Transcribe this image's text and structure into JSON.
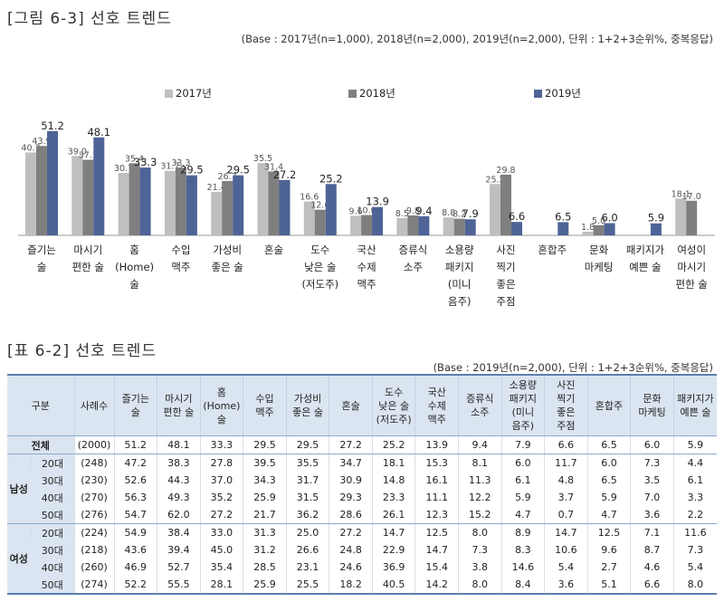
{
  "figure": {
    "title": "[그림 6-3] 선호 트렌드",
    "base_note": "(Base : 2017년(n=1,000), 2018년(n=2,000), 2019년(n=2,000), 단위 : 1+2+3순위%, 중복응답)"
  },
  "colors": {
    "y2017": "#bfbfbf",
    "y2018": "#7f7f7f",
    "y2019": "#4e6496"
  },
  "chart_data": {
    "type": "bar",
    "categories": [
      [
        "즐기는",
        "술"
      ],
      [
        "마시기",
        "편한 술"
      ],
      [
        "홈",
        "(Home)",
        "술"
      ],
      [
        "수입",
        "맥주"
      ],
      [
        "가성비",
        "좋은 술"
      ],
      [
        "혼술"
      ],
      [
        "도수",
        "낮은 술",
        "(저도주)"
      ],
      [
        "국산",
        "수제",
        "맥주"
      ],
      [
        "증류식",
        "소주"
      ],
      [
        "소용량",
        "패키지",
        "(미니",
        "음주)"
      ],
      [
        "사진",
        "찍기",
        "좋은",
        "주점"
      ],
      [
        "혼합주"
      ],
      [
        "문화",
        "마케팅"
      ],
      [
        "패키지가",
        "예쁜 술"
      ],
      [
        "여성이",
        "마시기",
        "편한 술"
      ]
    ],
    "series": [
      {
        "name": "2017년",
        "values": [
          40.7,
          39.0,
          30.7,
          31.7,
          21.4,
          35.5,
          16.6,
          9.6,
          8.5,
          8.8,
          25.2,
          null,
          1.8,
          null,
          18.1
        ]
      },
      {
        "name": "2018년",
        "values": [
          43.9,
          37.1,
          35.4,
          33.3,
          26.7,
          31.4,
          12.6,
          10.0,
          9.8,
          8.2,
          29.8,
          null,
          5.0,
          null,
          17.0
        ]
      },
      {
        "name": "2019년",
        "values": [
          51.2,
          48.1,
          33.3,
          29.5,
          29.5,
          27.2,
          25.2,
          13.9,
          9.4,
          7.9,
          6.6,
          6.5,
          6.0,
          5.9,
          null
        ]
      }
    ],
    "ylim": [
      0,
      60
    ],
    "legend": "top-center"
  },
  "table": {
    "title": "[표 6-2] 선호 트렌드",
    "base_note": "(Base : 2019년(n=2,000), 단위 : 1+2+3순위%, 중복응답)",
    "headers": [
      [
        "구분"
      ],
      [
        "사례수"
      ],
      [
        "즐기는",
        "술"
      ],
      [
        "마시기",
        "편한 술"
      ],
      [
        "홈",
        "(Home)",
        "술"
      ],
      [
        "수입",
        "맥주"
      ],
      [
        "가성비",
        "좋은 술"
      ],
      [
        "혼술"
      ],
      [
        "도수",
        "낮은 술",
        "(저도주)"
      ],
      [
        "국산",
        "수제",
        "맥주"
      ],
      [
        "증류식",
        "소주"
      ],
      [
        "소용량",
        "패키지",
        "(미니",
        "음주)"
      ],
      [
        "사진",
        "찍기",
        "좋은",
        "주점"
      ],
      [
        "혼합주"
      ],
      [
        "문화",
        "마케팅"
      ],
      [
        "패키지가",
        "예쁜 술"
      ]
    ],
    "total": {
      "label": "전체",
      "n": "(2000)",
      "values": [
        "51.2",
        "48.1",
        "33.3",
        "29.5",
        "29.5",
        "27.2",
        "25.2",
        "13.9",
        "9.4",
        "7.9",
        "6.6",
        "6.5",
        "6.0",
        "5.9"
      ]
    },
    "groups": [
      {
        "name": "남성",
        "rows": [
          {
            "label": "20대",
            "n": "(248)",
            "values": [
              "47.2",
              "38.3",
              "27.8",
              "39.5",
              "35.5",
              "34.7",
              "18.1",
              "15.3",
              "8.1",
              "6.0",
              "11.7",
              "6.0",
              "7.3",
              "4.4"
            ]
          },
          {
            "label": "30대",
            "n": "(230)",
            "values": [
              "52.6",
              "44.3",
              "37.0",
              "34.3",
              "31.7",
              "30.9",
              "14.8",
              "16.1",
              "11.3",
              "6.1",
              "4.8",
              "6.5",
              "3.5",
              "6.1"
            ]
          },
          {
            "label": "40대",
            "n": "(270)",
            "values": [
              "56.3",
              "49.3",
              "35.2",
              "25.9",
              "31.5",
              "29.3",
              "23.3",
              "11.1",
              "12.2",
              "5.9",
              "3.7",
              "5.9",
              "7.0",
              "3.3"
            ]
          },
          {
            "label": "50대",
            "n": "(276)",
            "values": [
              "54.7",
              "62.0",
              "27.2",
              "21.7",
              "36.2",
              "28.6",
              "26.1",
              "12.3",
              "15.2",
              "4.7",
              "0.7",
              "4.7",
              "3.6",
              "2.2"
            ]
          }
        ]
      },
      {
        "name": "여성",
        "rows": [
          {
            "label": "20대",
            "n": "(224)",
            "values": [
              "54.9",
              "38.4",
              "33.0",
              "31.3",
              "25.0",
              "27.2",
              "14.7",
              "12.5",
              "8.0",
              "8.9",
              "14.7",
              "12.5",
              "7.1",
              "11.6"
            ]
          },
          {
            "label": "30대",
            "n": "(218)",
            "values": [
              "43.6",
              "39.4",
              "45.0",
              "31.2",
              "26.6",
              "24.8",
              "22.9",
              "14.7",
              "7.3",
              "8.3",
              "10.6",
              "9.6",
              "8.7",
              "7.3"
            ]
          },
          {
            "label": "40대",
            "n": "(260)",
            "values": [
              "46.9",
              "52.7",
              "35.4",
              "28.5",
              "23.1",
              "24.6",
              "36.9",
              "15.4",
              "3.8",
              "14.6",
              "5.4",
              "2.7",
              "4.6",
              "5.4"
            ]
          },
          {
            "label": "50대",
            "n": "(274)",
            "values": [
              "52.2",
              "55.5",
              "28.1",
              "25.9",
              "25.5",
              "18.2",
              "40.5",
              "14.2",
              "8.0",
              "8.4",
              "3.6",
              "5.1",
              "6.6",
              "8.0"
            ]
          }
        ]
      }
    ]
  }
}
